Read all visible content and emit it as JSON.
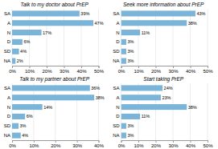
{
  "chart_data": [
    {
      "type": "bar",
      "orientation": "horizontal",
      "title": "Talk to my doctor about PrEP",
      "categories": [
        "SA",
        "A",
        "N",
        "D",
        "SD",
        "NA"
      ],
      "values": [
        39,
        47,
        17,
        6,
        4,
        2
      ],
      "value_labels": [
        "39%",
        "47%",
        "17%",
        "6%",
        "4%",
        "2%"
      ],
      "color": "#7ab4d8",
      "xlim": [
        0,
        50
      ],
      "xticks": [
        {
          "value": 0,
          "label": "0%"
        },
        {
          "value": 10,
          "label": "10%"
        },
        {
          "value": 20,
          "label": "20%"
        },
        {
          "value": 30,
          "label": "30%"
        },
        {
          "value": 40,
          "label": "40%"
        },
        {
          "value": 50,
          "label": "50%"
        }
      ],
      "grid": true,
      "data_labels": true
    },
    {
      "type": "bar",
      "orientation": "horizontal",
      "title": "Seek more information about PrEP",
      "categories": [
        "SA",
        "A",
        "N",
        "D",
        "SD",
        "NA"
      ],
      "values": [
        43,
        38,
        11,
        3,
        3,
        3
      ],
      "value_labels": [
        "43%",
        "38%",
        "11%",
        "3%",
        "3%",
        "3%"
      ],
      "color": "#7ab4d8",
      "xlim": [
        0,
        50
      ],
      "xticks": [
        {
          "value": 0,
          "label": "0%"
        },
        {
          "value": 10,
          "label": "10%"
        },
        {
          "value": 20,
          "label": "20%"
        },
        {
          "value": 30,
          "label": "30%"
        },
        {
          "value": 40,
          "label": "40%"
        },
        {
          "value": 50,
          "label": "50%"
        }
      ],
      "grid": true,
      "data_labels": true
    },
    {
      "type": "bar",
      "orientation": "horizontal",
      "title": "Talk to my partner about PrEP",
      "categories": [
        "SA",
        "A",
        "N",
        "D",
        "SD",
        "NA"
      ],
      "values": [
        36,
        38,
        14,
        6,
        3,
        4
      ],
      "value_labels": [
        "36%",
        "38%",
        "14%",
        "6%",
        "3%",
        "4%"
      ],
      "color": "#7ab4d8",
      "xlim": [
        0,
        40
      ],
      "xticks": [
        {
          "value": 0,
          "label": "0%"
        },
        {
          "value": 10,
          "label": "10%"
        },
        {
          "value": 20,
          "label": "20%"
        },
        {
          "value": 30,
          "label": "30%"
        },
        {
          "value": 40,
          "label": "40%"
        }
      ],
      "grid": true,
      "data_labels": true
    },
    {
      "type": "bar",
      "orientation": "horizontal",
      "title": "Start taking PrEP",
      "categories": [
        "SA",
        "A",
        "N",
        "D",
        "SD",
        "NA"
      ],
      "values": [
        24,
        23,
        38,
        11,
        3,
        3
      ],
      "value_labels": [
        "24%",
        "23%",
        "38%",
        "11%",
        "3%",
        "3%"
      ],
      "color": "#7ab4d8",
      "xlim": [
        0,
        50
      ],
      "xticks": [
        {
          "value": 0,
          "label": "0%"
        },
        {
          "value": 10,
          "label": "10%"
        },
        {
          "value": 20,
          "label": "20%"
        },
        {
          "value": 30,
          "label": "30%"
        },
        {
          "value": 40,
          "label": "40%"
        },
        {
          "value": 50,
          "label": "50%"
        }
      ],
      "grid": true,
      "data_labels": true
    }
  ]
}
